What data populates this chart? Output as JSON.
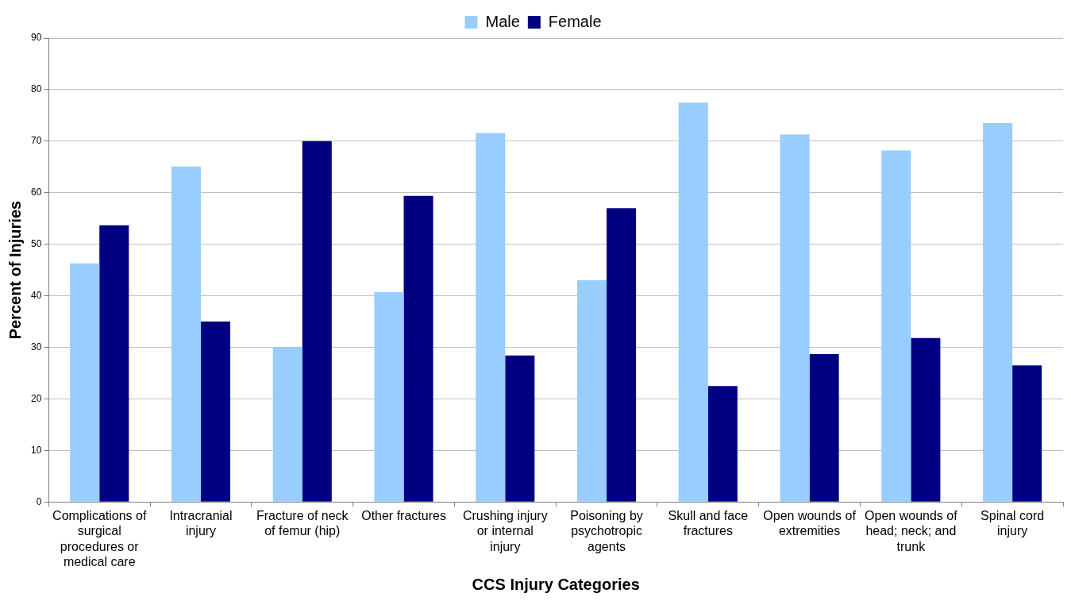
{
  "chart_data": {
    "type": "bar",
    "xlabel": "CCS Injury Categories",
    "ylabel": "Percent of Injuries",
    "categories": [
      "Complications of surgical procedures or medical care",
      "Intracranial injury",
      "Fracture of neck of femur (hip)",
      "Other fractures",
      "Crushing injury or internal injury",
      "Poisoning by psychotropic agents",
      "Skull and face fractures",
      "Open wounds of extremities",
      "Open wounds of head; neck; and trunk",
      "Spinal cord injury"
    ],
    "series": [
      {
        "name": "Male",
        "color": "#99ccff",
        "values": [
          46.3,
          65.1,
          30.0,
          40.7,
          71.6,
          43.0,
          77.5,
          71.3,
          68.2,
          73.5
        ]
      },
      {
        "name": "Female",
        "color": "#000080",
        "values": [
          53.7,
          35.0,
          70.0,
          59.4,
          28.4,
          57.0,
          22.5,
          28.7,
          31.8,
          26.5
        ]
      }
    ],
    "ylim": [
      0,
      90
    ],
    "yticks": [
      0,
      10,
      20,
      30,
      40,
      50,
      60,
      70,
      80,
      90
    ],
    "grid": "y",
    "legend": "top"
  }
}
